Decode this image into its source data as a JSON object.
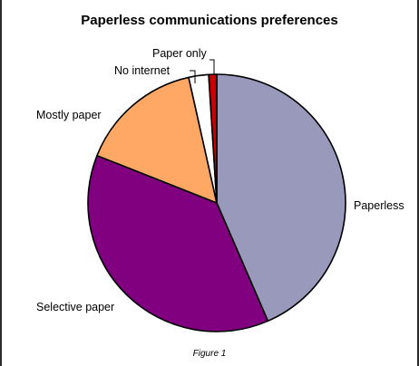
{
  "chart_data": {
    "type": "pie",
    "title": "Paperless communications preferences",
    "categories": [
      "Paperless",
      "Selective paper",
      "Mostly paper",
      "No internet",
      "Paper only"
    ],
    "values": [
      43.5,
      37.5,
      15.5,
      2.5,
      1.0
    ],
    "colors": [
      "#9999BB",
      "#800080",
      "#FFA866",
      "#FFFFFF",
      "#CC0000"
    ],
    "legend": "none",
    "caption": "Figure 1"
  }
}
